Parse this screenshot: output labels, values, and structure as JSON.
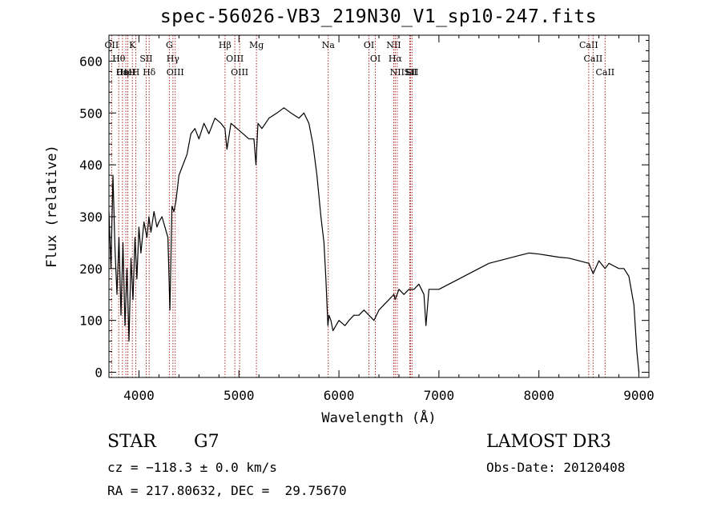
{
  "chart_data": {
    "type": "line",
    "title": "spec-56026-VB3_219N30_V1_sp10-247.fits",
    "xlabel": "Wavelength (Å)",
    "ylabel": "Flux (relative)",
    "xlim": [
      3700,
      9100
    ],
    "ylim": [
      -10,
      650
    ],
    "xticks": [
      4000,
      5000,
      6000,
      7000,
      8000,
      9000
    ],
    "yticks": [
      0,
      100,
      200,
      300,
      400,
      500,
      600
    ],
    "grid": false,
    "series": [
      {
        "x": [
          3700,
          3720,
          3740,
          3760,
          3780,
          3800,
          3820,
          3840,
          3860,
          3880,
          3900,
          3920,
          3940,
          3960,
          3980,
          4000,
          4020,
          4050,
          4080,
          4100,
          4120,
          4150,
          4180,
          4200,
          4230,
          4260,
          4290,
          4310,
          4330,
          4350,
          4370,
          4400,
          4440,
          4480,
          4520,
          4560,
          4600,
          4650,
          4700,
          4760,
          4820,
          4860,
          4880,
          4920,
          4980,
          5040,
          5100,
          5150,
          5170,
          5190,
          5230,
          5300,
          5380,
          5450,
          5520,
          5600,
          5650,
          5700,
          5740,
          5780,
          5820,
          5850,
          5870,
          5890,
          5900,
          5920,
          5940,
          6000,
          6060,
          6100,
          6150,
          6200,
          6250,
          6300,
          6350,
          6400,
          6450,
          6500,
          6550,
          6563,
          6600,
          6650,
          6700,
          6750,
          6800,
          6850,
          6870,
          6900,
          6950,
          7000,
          7100,
          7200,
          7300,
          7400,
          7500,
          7600,
          7700,
          7800,
          7900,
          8000,
          8100,
          8200,
          8300,
          8400,
          8500,
          8542,
          8600,
          8662,
          8700,
          8750,
          8800,
          8850,
          8900,
          8950,
          8980,
          9000
        ],
        "y": [
          310,
          200,
          380,
          240,
          150,
          260,
          110,
          250,
          90,
          200,
          60,
          220,
          140,
          260,
          180,
          280,
          230,
          290,
          260,
          300,
          270,
          310,
          280,
          290,
          300,
          280,
          260,
          120,
          320,
          310,
          330,
          380,
          400,
          420,
          460,
          470,
          450,
          480,
          460,
          490,
          480,
          470,
          430,
          480,
          470,
          460,
          450,
          450,
          400,
          480,
          470,
          490,
          500,
          510,
          500,
          490,
          500,
          480,
          440,
          380,
          300,
          250,
          180,
          90,
          110,
          100,
          80,
          100,
          90,
          100,
          110,
          110,
          120,
          110,
          100,
          120,
          130,
          140,
          150,
          140,
          160,
          150,
          160,
          160,
          170,
          150,
          90,
          160,
          160,
          160,
          170,
          180,
          190,
          200,
          210,
          215,
          220,
          225,
          230,
          228,
          225,
          222,
          220,
          215,
          210,
          190,
          215,
          200,
          210,
          205,
          200,
          200,
          185,
          130,
          40,
          0
        ]
      }
    ],
    "line_marks": [
      {
        "label": "OII",
        "x": 3727
      },
      {
        "label": "Hθ",
        "x": 3798
      },
      {
        "label": "Hη",
        "x": 3835
      },
      {
        "label": "CaII",
        "x": 3869
      },
      {
        "label": "HeI",
        "x": 3889
      },
      {
        "label": "K",
        "x": 3934
      },
      {
        "label": "H",
        "x": 3969
      },
      {
        "label": "SII",
        "x": 4072
      },
      {
        "label": "Hδ",
        "x": 4102
      },
      {
        "label": "G",
        "x": 4304
      },
      {
        "label": "Hγ",
        "x": 4340
      },
      {
        "label": "OIII",
        "x": 4363
      },
      {
        "label": "Hβ",
        "x": 4861
      },
      {
        "label": "OIII",
        "x": 4959
      },
      {
        "label": "OIII",
        "x": 5007
      },
      {
        "label": "Mg",
        "x": 5175
      },
      {
        "label": "Na",
        "x": 5893
      },
      {
        "label": "OI",
        "x": 6300
      },
      {
        "label": "OI",
        "x": 6364
      },
      {
        "label": "NII",
        "x": 6548
      },
      {
        "label": "Hα",
        "x": 6563
      },
      {
        "label": "NII",
        "x": 6583
      },
      {
        "label": "Li",
        "x": 6708
      },
      {
        "label": "SII",
        "x": 6716
      },
      {
        "label": "SII",
        "x": 6731
      },
      {
        "label": "CaII",
        "x": 8498
      },
      {
        "label": "CaII",
        "x": 8542
      },
      {
        "label": "CaII",
        "x": 8662
      }
    ]
  },
  "info": {
    "object_class": "STAR",
    "subclass": "G7",
    "survey": "LAMOST DR3",
    "cz": "cz = −118.3 ± 0.0 km/s",
    "obs_date": "Obs-Date: 20120408",
    "coords": "RA = 217.80632, DEC =  29.75670"
  },
  "colors": {
    "spectrum": "#000000",
    "line_marker": "#b22222"
  }
}
